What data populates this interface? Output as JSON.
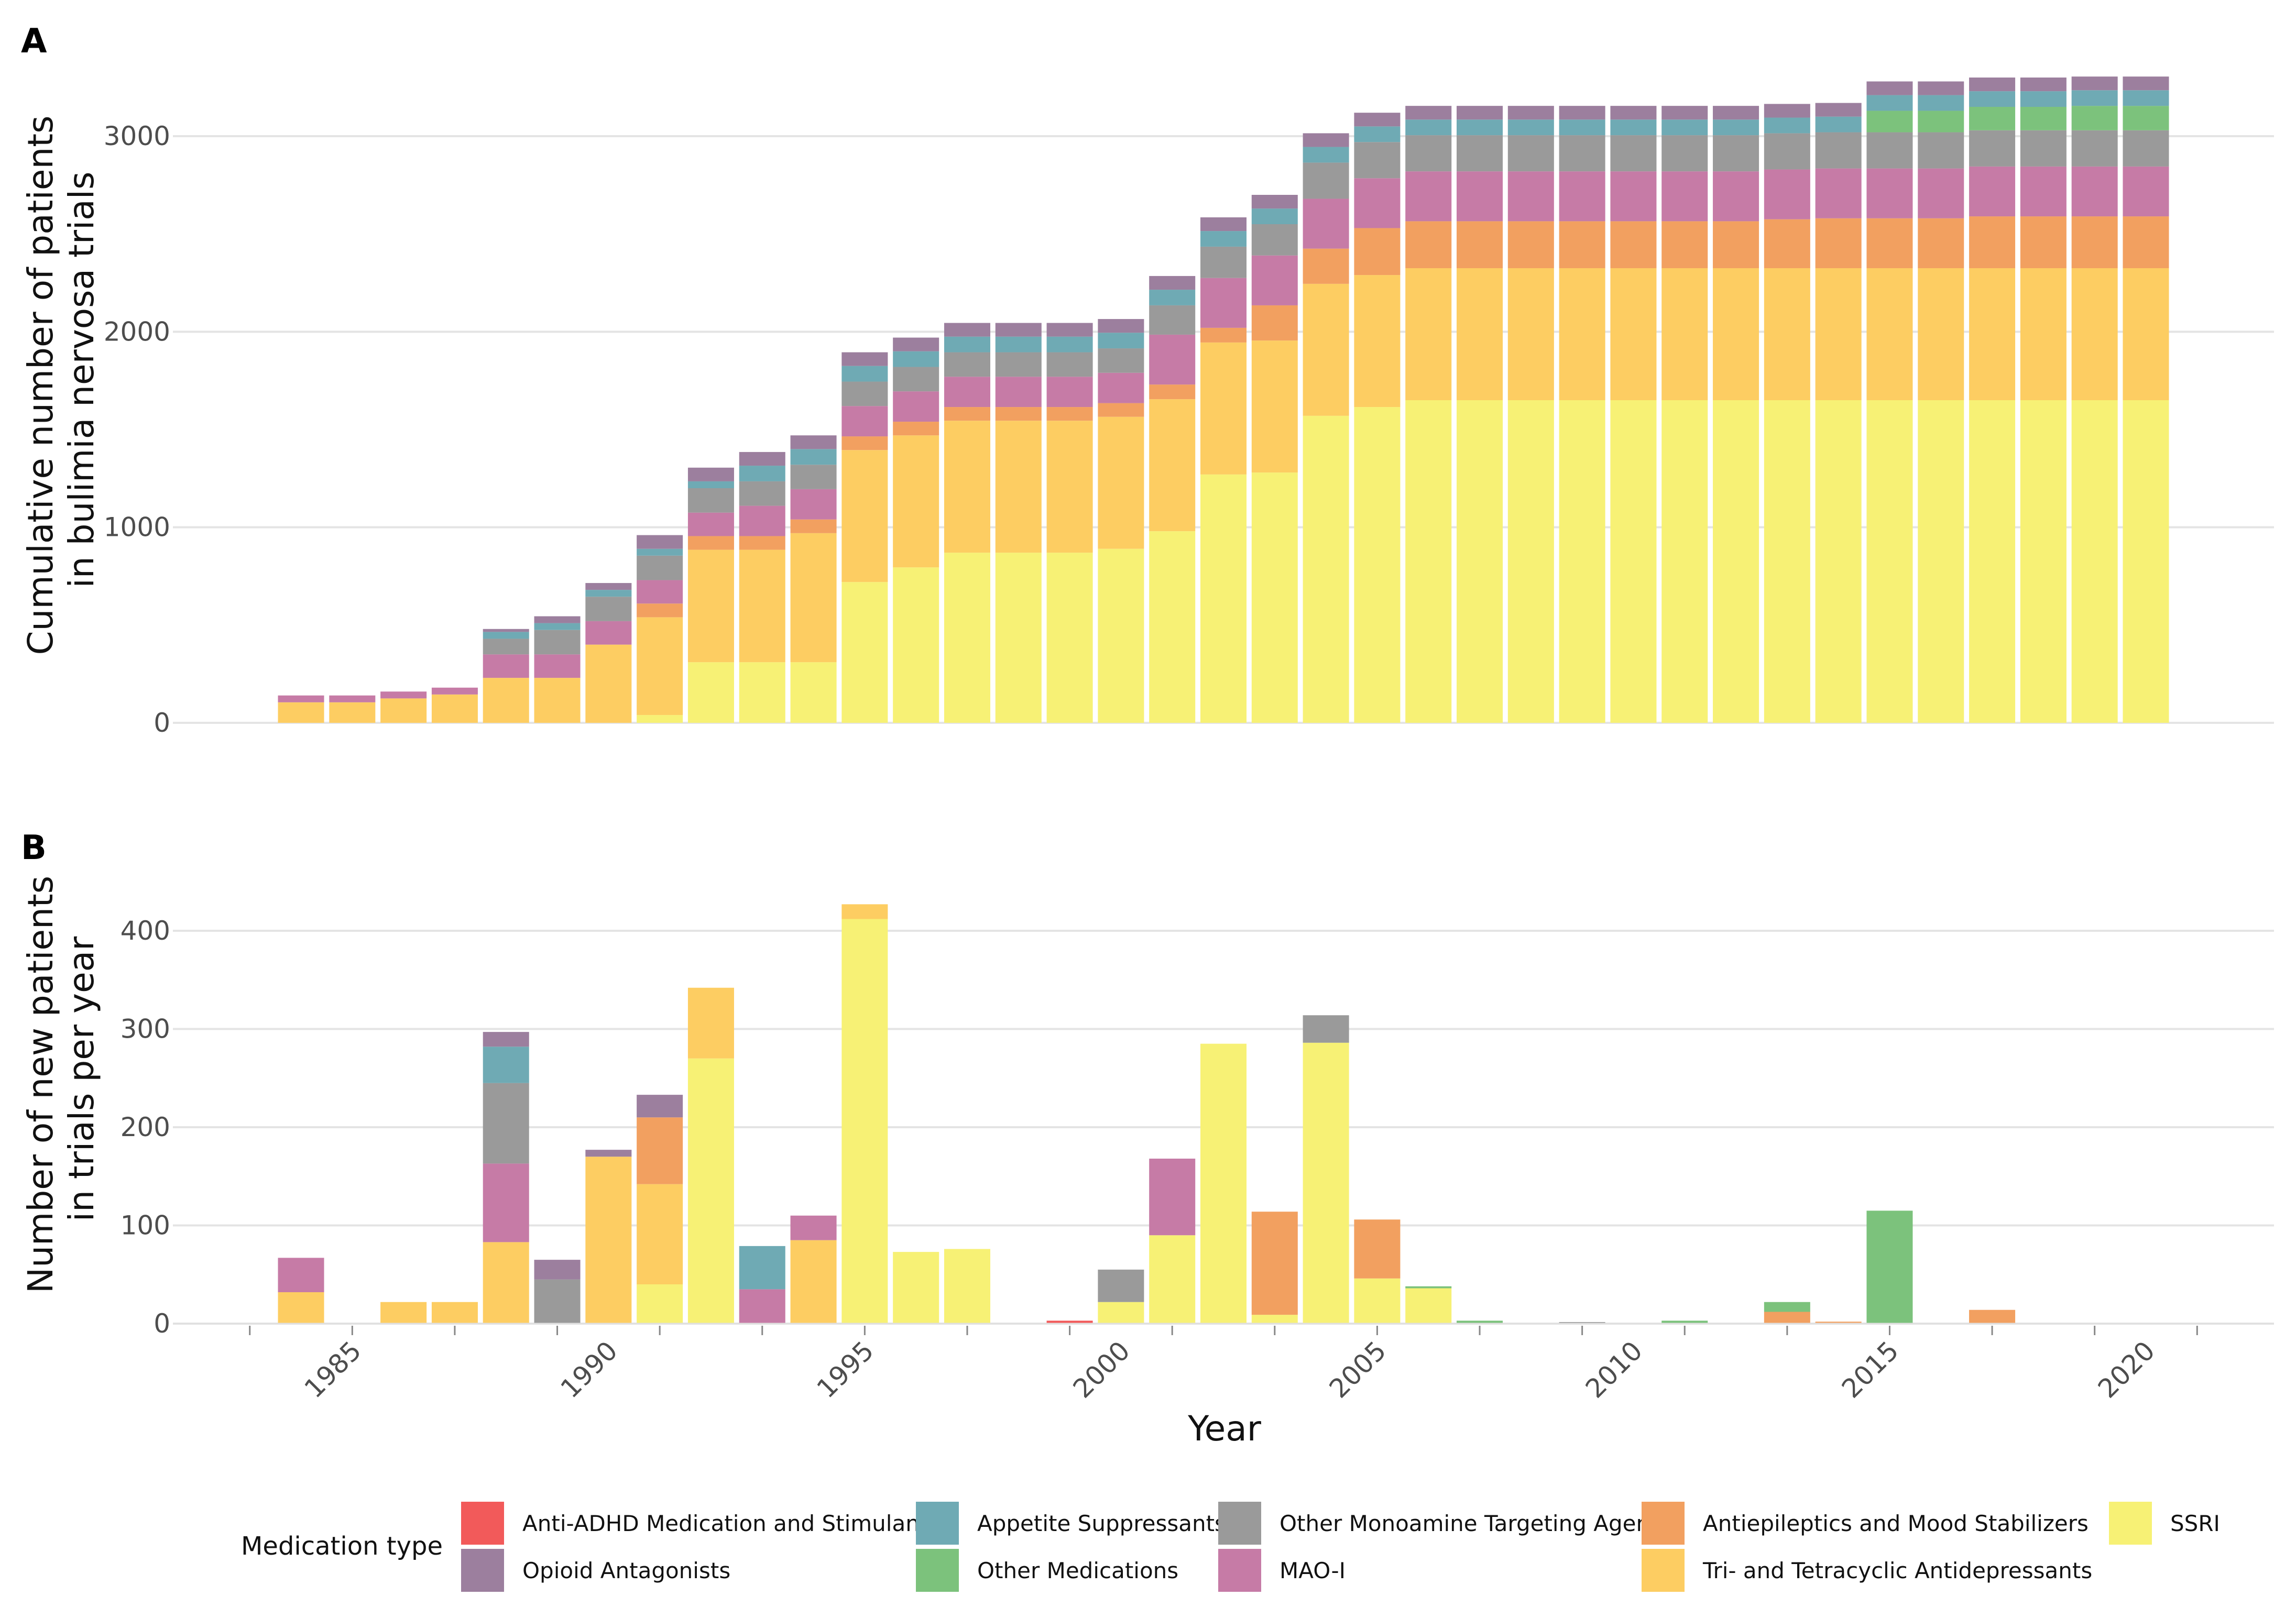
{
  "colors": {
    "Anti-ADHD Medication and Stimulants": "#f25a5a",
    "Opioid Antagonists": "#9c7f9e",
    "Appetite Suppressants": "#6faab4",
    "Other Medications": "#7cc27c",
    "Other Monoamine Targeting Agents": "#9a9a9a",
    "MAO-I": "#c67ba6",
    "Antiepileptics and Mood Stabilizers": "#f2a060",
    "Tri- and Tetracyclic Antidepressants": "#fdcd62",
    "SSRI": "#f7f175"
  },
  "legend": {
    "title": "Medication type",
    "items": [
      {
        "label": "Anti-ADHD Medication and Stimulants"
      },
      {
        "label": "Opioid Antagonists"
      },
      {
        "label": "Appetite Suppressants"
      },
      {
        "label": "Other Medications"
      },
      {
        "label": "Other Monoamine Targeting Agents"
      },
      {
        "label": "MAO-I"
      },
      {
        "label": "Antiepileptics and Mood Stabilizers"
      },
      {
        "label": "Tri- and Tetracyclic Antidepressants"
      },
      {
        "label": "SSRI"
      }
    ]
  },
  "chart_data": [
    {
      "panel": "A",
      "type": "bar",
      "stacked": true,
      "ylabel": [
        "Cumulative number of patients",
        "in bulimia nervosa trials"
      ],
      "xlabel": "",
      "ylim": [
        0,
        3300
      ],
      "yticks": [
        0,
        1000,
        2000,
        3000
      ],
      "xlim": [
        1981.5,
        2022.5
      ],
      "xticks": [
        1985,
        1990,
        1995,
        2000,
        2005,
        2010,
        2015,
        2020
      ],
      "x": [
        1984,
        1985,
        1986,
        1987,
        1988,
        1989,
        1990,
        1991,
        1992,
        1993,
        1994,
        1995,
        1996,
        1997,
        1998,
        1999,
        2000,
        2001,
        2002,
        2003,
        2004,
        2005,
        2006,
        2007,
        2008,
        2009,
        2010,
        2011,
        2012,
        2013,
        2014,
        2015,
        2016,
        2017,
        2018,
        2019,
        2020
      ],
      "series": [
        {
          "name": "SSRI",
          "values": [
            0,
            0,
            0,
            0,
            0,
            0,
            0,
            40,
            310,
            310,
            310,
            720,
            795,
            870,
            870,
            870,
            890,
            980,
            1270,
            1280,
            1570,
            1615,
            1650,
            1650,
            1650,
            1650,
            1650,
            1650,
            1650,
            1650,
            1650,
            1650,
            1650,
            1650,
            1650,
            1650,
            1650
          ]
        },
        {
          "name": "Tri- and Tetracyclic Antidepressants",
          "values": [
            105,
            105,
            125,
            145,
            230,
            230,
            400,
            500,
            575,
            575,
            660,
            675,
            675,
            675,
            675,
            675,
            675,
            675,
            675,
            675,
            675,
            675,
            675,
            675,
            675,
            675,
            675,
            675,
            675,
            675,
            675,
            675,
            675,
            675,
            675,
            675,
            675
          ]
        },
        {
          "name": "Antiepileptics and Mood Stabilizers",
          "values": [
            0,
            0,
            0,
            0,
            0,
            0,
            0,
            70,
            70,
            70,
            70,
            70,
            70,
            70,
            70,
            70,
            70,
            75,
            75,
            180,
            180,
            240,
            240,
            240,
            240,
            240,
            240,
            240,
            240,
            250,
            255,
            255,
            255,
            265,
            265,
            265,
            265
          ]
        },
        {
          "name": "MAO-I",
          "values": [
            35,
            35,
            35,
            35,
            120,
            120,
            120,
            120,
            120,
            155,
            155,
            155,
            155,
            155,
            155,
            155,
            155,
            255,
            255,
            255,
            255,
            255,
            255,
            255,
            255,
            255,
            255,
            255,
            255,
            255,
            255,
            255,
            255,
            255,
            255,
            255,
            255
          ]
        },
        {
          "name": "Other Monoamine Targeting Agents",
          "values": [
            0,
            0,
            0,
            0,
            80,
            125,
            125,
            125,
            125,
            125,
            125,
            125,
            125,
            125,
            125,
            125,
            125,
            150,
            160,
            160,
            185,
            185,
            185,
            185,
            185,
            185,
            185,
            185,
            185,
            185,
            185,
            185,
            185,
            185,
            185,
            185,
            185
          ]
        },
        {
          "name": "Other Medications",
          "values": [
            0,
            0,
            0,
            0,
            0,
            0,
            0,
            0,
            0,
            0,
            0,
            0,
            0,
            0,
            0,
            0,
            0,
            0,
            0,
            0,
            0,
            0,
            0,
            0,
            0,
            0,
            0,
            0,
            0,
            0,
            0,
            110,
            110,
            120,
            120,
            125,
            125
          ]
        },
        {
          "name": "Appetite Suppressants",
          "values": [
            0,
            0,
            0,
            0,
            35,
            35,
            35,
            35,
            35,
            80,
            80,
            80,
            80,
            80,
            80,
            80,
            80,
            80,
            80,
            80,
            80,
            80,
            80,
            80,
            80,
            80,
            80,
            80,
            80,
            80,
            80,
            80,
            80,
            80,
            80,
            80,
            80
          ]
        },
        {
          "name": "Opioid Antagonists",
          "values": [
            0,
            0,
            0,
            0,
            15,
            35,
            35,
            70,
            70,
            70,
            70,
            70,
            70,
            70,
            70,
            70,
            70,
            70,
            70,
            70,
            70,
            70,
            70,
            70,
            70,
            70,
            70,
            70,
            70,
            70,
            70,
            70,
            70,
            70,
            70,
            70,
            70
          ]
        },
        {
          "name": "Anti-ADHD Medication and Stimulants",
          "values": [
            0,
            0,
            0,
            0,
            0,
            0,
            0,
            0,
            0,
            0,
            0,
            0,
            0,
            0,
            0,
            0,
            0,
            0,
            0,
            0,
            0,
            0,
            0,
            0,
            0,
            0,
            0,
            0,
            0,
            0,
            0,
            0,
            0,
            0,
            0,
            0,
            0
          ]
        }
      ]
    },
    {
      "panel": "B",
      "type": "bar",
      "stacked": true,
      "ylabel": [
        "Number of new patients",
        "in trials per year"
      ],
      "xlabel": "Year",
      "ylim": [
        0,
        440
      ],
      "yticks": [
        0,
        100,
        200,
        300,
        400
      ],
      "xlim": [
        1981.5,
        2022.5
      ],
      "xticks": [
        1985,
        1990,
        1995,
        2000,
        2005,
        2010,
        2015,
        2020
      ],
      "x": [
        1984,
        1985,
        1986,
        1987,
        1988,
        1989,
        1990,
        1991,
        1992,
        1993,
        1994,
        1995,
        1996,
        1997,
        1998,
        1999,
        2000,
        2001,
        2002,
        2003,
        2004,
        2005,
        2006,
        2007,
        2008,
        2009,
        2010,
        2011,
        2012,
        2013,
        2014,
        2015,
        2016,
        2017,
        2018,
        2019,
        2020
      ],
      "series": [
        {
          "name": "SSRI",
          "values": [
            0,
            0,
            0,
            0,
            0,
            0,
            0,
            40,
            270,
            0,
            0,
            412,
            73,
            76,
            0,
            0,
            22,
            90,
            285,
            9,
            286,
            46,
            36,
            0,
            0,
            0,
            0,
            0,
            0,
            0,
            0,
            0,
            0,
            0,
            0,
            0,
            0
          ]
        },
        {
          "name": "Tri- and Tetracyclic Antidepressants",
          "values": [
            32,
            0,
            22,
            22,
            83,
            0,
            170,
            102,
            72,
            0,
            85,
            15,
            0,
            0,
            0,
            0,
            0,
            0,
            0,
            0,
            0,
            0,
            0,
            0,
            0,
            0,
            0,
            0,
            0,
            0,
            0,
            0,
            0,
            0,
            0,
            0,
            0
          ]
        },
        {
          "name": "Antiepileptics and Mood Stabilizers",
          "values": [
            0,
            0,
            0,
            0,
            0,
            0,
            0,
            68,
            0,
            0,
            0,
            0,
            0,
            0,
            0,
            0,
            0,
            0,
            0,
            105,
            0,
            60,
            0,
            0,
            0,
            0,
            0,
            0,
            0,
            12,
            2,
            0,
            0,
            14,
            0,
            0,
            0
          ]
        },
        {
          "name": "MAO-I",
          "values": [
            35,
            0,
            0,
            0,
            80,
            0,
            0,
            0,
            0,
            35,
            25,
            0,
            0,
            0,
            0,
            0,
            0,
            78,
            0,
            0,
            0,
            0,
            0,
            0,
            0,
            0,
            0,
            0,
            0,
            0,
            0,
            0,
            0,
            0,
            0,
            0,
            0
          ]
        },
        {
          "name": "Other Monoamine Targeting Agents",
          "values": [
            0,
            0,
            0,
            0,
            82,
            45,
            0,
            0,
            0,
            0,
            0,
            0,
            0,
            0,
            0,
            0,
            33,
            0,
            0,
            0,
            28,
            0,
            0,
            0,
            0,
            1,
            0,
            0,
            0,
            0,
            0,
            0,
            0,
            0,
            0,
            0,
            0
          ]
        },
        {
          "name": "Other Medications",
          "values": [
            0,
            0,
            0,
            0,
            0,
            0,
            0,
            0,
            0,
            0,
            0,
            0,
            0,
            0,
            0,
            0,
            0,
            0,
            0,
            0,
            0,
            0,
            2,
            3,
            0,
            0,
            0,
            3,
            0,
            10,
            0,
            115,
            0,
            0,
            0,
            0,
            0
          ]
        },
        {
          "name": "Appetite Suppressants",
          "values": [
            0,
            0,
            0,
            0,
            37,
            0,
            0,
            0,
            0,
            44,
            0,
            0,
            0,
            0,
            0,
            0,
            0,
            0,
            0,
            0,
            0,
            0,
            0,
            0,
            0,
            0,
            0,
            0,
            0,
            0,
            0,
            0,
            0,
            0,
            0,
            0,
            0
          ]
        },
        {
          "name": "Opioid Antagonists",
          "values": [
            0,
            0,
            0,
            0,
            15,
            20,
            7,
            23,
            0,
            0,
            0,
            0,
            0,
            0,
            0,
            0,
            0,
            0,
            0,
            0,
            0,
            0,
            0,
            0,
            0,
            0,
            0,
            0,
            0,
            0,
            0,
            0,
            0,
            0,
            0,
            0,
            0
          ]
        },
        {
          "name": "Anti-ADHD Medication and Stimulants",
          "values": [
            0,
            0,
            0,
            0,
            0,
            0,
            0,
            0,
            0,
            0,
            0,
            0,
            0,
            0,
            0,
            3,
            0,
            0,
            0,
            0,
            0,
            0,
            0,
            0,
            0,
            0,
            0,
            0,
            0,
            0,
            0,
            0,
            0,
            0,
            0,
            0,
            0
          ]
        }
      ]
    }
  ]
}
